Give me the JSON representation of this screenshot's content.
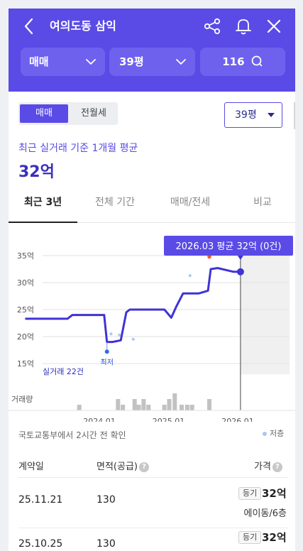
{
  "header": {
    "title": "여의도동 삼익",
    "icons": [
      "back-icon",
      "share-icon",
      "bell-icon",
      "close-icon"
    ],
    "accent_color": "#5a4be6"
  },
  "filters": {
    "trade_type": "매매",
    "size": "39평",
    "comment_count": "116"
  },
  "toggle": {
    "options": [
      "매매",
      "전월세"
    ],
    "selected": "매매",
    "size_select": "39평"
  },
  "summary": {
    "caption": "최근 실거래 기준 1개월 평균",
    "price": "32억"
  },
  "period_tabs": [
    "최근 3년",
    "전체 기간",
    "매매/전세",
    "비교"
  ],
  "period_selected": "최근 3년",
  "chart_data": {
    "type": "line",
    "y_ticks": [
      "35억",
      "30억",
      "25억",
      "20억",
      "15억"
    ],
    "ylim": [
      13,
      36.5
    ],
    "x_ticks": [
      "2024.01",
      "2025.01",
      "2026.01"
    ],
    "tooltip": "2026.03 평균 32억 (0건)",
    "annotation_min": "최저",
    "annotation_count": "실거래 22건",
    "volume_label": "거래량",
    "series": [
      {
        "values_x": [
          2022.95,
          2023.45,
          2023.55,
          2023.62,
          2024.08,
          2024.12,
          2024.2,
          2024.32,
          2024.4,
          2024.45,
          2024.55,
          2024.95,
          2025.05,
          2025.12,
          2025.22,
          2025.45,
          2025.58,
          2025.62,
          2025.72,
          2025.95,
          2026.05
        ],
        "values_y": [
          23.3,
          23.3,
          23.3,
          24,
          24,
          19,
          19,
          19.3,
          24.5,
          25,
          25,
          25,
          23.5,
          25.5,
          28,
          28,
          28.5,
          32.5,
          32.7,
          32,
          32
        ]
      }
    ],
    "deal_points": [
      {
        "x": 2024.18,
        "y": 20.5
      },
      {
        "x": 2024.3,
        "y": 20.3
      },
      {
        "x": 2024.5,
        "y": 19.5
      },
      {
        "x": 2025.32,
        "y": 31.3
      }
    ],
    "red_point": {
      "x": 2025.6,
      "y": 34.8
    },
    "min_point": {
      "x": 2024.12,
      "y": 17.2
    },
    "current_point": {
      "x": 2026.05,
      "y": 32
    },
    "volume_bars": [
      {
        "x": 2023.72,
        "v": 1
      },
      {
        "x": 2024.28,
        "v": 2
      },
      {
        "x": 2024.35,
        "v": 1
      },
      {
        "x": 2024.52,
        "v": 2
      },
      {
        "x": 2024.58,
        "v": 1
      },
      {
        "x": 2024.65,
        "v": 2
      },
      {
        "x": 2024.72,
        "v": 1
      },
      {
        "x": 2024.95,
        "v": 1
      },
      {
        "x": 2025.02,
        "v": 2
      },
      {
        "x": 2025.1,
        "v": 3
      },
      {
        "x": 2025.2,
        "v": 1
      },
      {
        "x": 2025.28,
        "v": 1
      },
      {
        "x": 2025.35,
        "v": 1
      },
      {
        "x": 2025.6,
        "v": 2
      }
    ],
    "line_color": "#3f33d6"
  },
  "source_note": "국토교통부에서 2시간 전 확인",
  "legend": "저층",
  "table": {
    "headers": {
      "date": "계약일",
      "area": "면적(공급)",
      "price": "가격"
    },
    "rows": [
      {
        "date": "25.11.21",
        "area": "130",
        "badge": "등기",
        "price": "32억",
        "floor": "에이동/6층"
      },
      {
        "date": "25.10.25",
        "area": "130",
        "badge": "등기",
        "price": "32억",
        "floor": ""
      }
    ]
  }
}
